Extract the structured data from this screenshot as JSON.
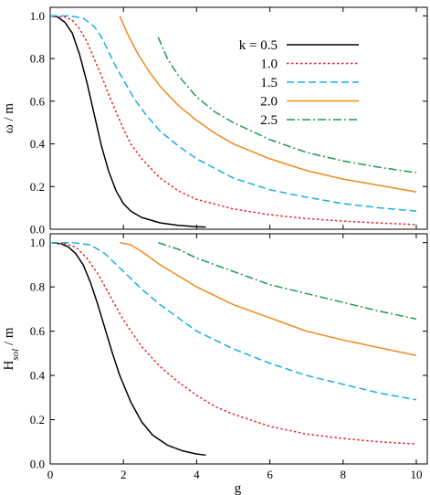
{
  "chart_data": [
    {
      "type": "line",
      "ylabel": "ω / m",
      "xlabel": "",
      "xlim": [
        0,
        10.3
      ],
      "ylim": [
        0,
        1.04
      ],
      "xticks": [
        0,
        2,
        4,
        6,
        8,
        10
      ],
      "yticks": [
        0.0,
        0.2,
        0.4,
        0.6,
        0.8,
        1.0
      ],
      "ytick_labels": [
        "0.0",
        "0.2",
        "0.4",
        "0.6",
        "0.8",
        "1.0"
      ],
      "show_xtick_labels": false,
      "legend": {
        "placement": "top-right",
        "entries": [
          {
            "text": "k = 0.5",
            "series": 0
          },
          {
            "text": "1.0",
            "series": 1
          },
          {
            "text": "1.5",
            "series": 2
          },
          {
            "text": "2.0",
            "series": 3
          },
          {
            "text": "2.5",
            "series": 4
          }
        ]
      },
      "series": [
        {
          "name": "k = 0.5",
          "color": "#000000",
          "dash": "solid",
          "x": [
            0,
            0.2,
            0.4,
            0.6,
            0.8,
            1.0,
            1.2,
            1.4,
            1.6,
            1.8,
            2.0,
            2.2,
            2.5,
            3.0,
            3.5,
            4.0,
            4.25
          ],
          "y": [
            1.0,
            0.995,
            0.97,
            0.92,
            0.82,
            0.69,
            0.54,
            0.39,
            0.27,
            0.18,
            0.12,
            0.085,
            0.055,
            0.03,
            0.018,
            0.012,
            0.01
          ]
        },
        {
          "name": "1.0",
          "color": "#e8262b",
          "dash": "dotted",
          "x": [
            0,
            0.4,
            0.6,
            0.8,
            1.0,
            1.2,
            1.4,
            1.6,
            1.8,
            2.0,
            2.2,
            2.5,
            3.0,
            3.5,
            4.0,
            5.0,
            6.0,
            7.0,
            8.0,
            9.0,
            10.0
          ],
          "y": [
            1.0,
            0.995,
            0.98,
            0.94,
            0.88,
            0.8,
            0.72,
            0.63,
            0.55,
            0.47,
            0.4,
            0.33,
            0.24,
            0.18,
            0.14,
            0.095,
            0.068,
            0.05,
            0.038,
            0.029,
            0.022
          ]
        },
        {
          "name": "1.5",
          "color": "#1aaee5",
          "dash": "dashed",
          "x": [
            0,
            0.5,
            0.9,
            1.2,
            1.4,
            1.6,
            1.8,
            2.0,
            2.3,
            2.6,
            3.0,
            3.5,
            4.0,
            5.0,
            6.0,
            7.0,
            8.0,
            9.0,
            10.0
          ],
          "y": [
            1.0,
            1.0,
            0.99,
            0.95,
            0.9,
            0.83,
            0.76,
            0.7,
            0.61,
            0.54,
            0.46,
            0.39,
            0.33,
            0.24,
            0.185,
            0.15,
            0.12,
            0.1,
            0.085
          ]
        },
        {
          "name": "2.0",
          "color": "#f08a1c",
          "dash": "solid",
          "x": [
            1.9,
            2.1,
            2.4,
            2.7,
            3.0,
            3.5,
            4.0,
            4.5,
            5.0,
            6.0,
            7.0,
            8.0,
            9.0,
            10.0
          ],
          "y": [
            1.0,
            0.92,
            0.82,
            0.74,
            0.67,
            0.58,
            0.51,
            0.45,
            0.4,
            0.33,
            0.275,
            0.235,
            0.205,
            0.175
          ]
        },
        {
          "name": "2.5",
          "color": "#1e9a4c",
          "dash": "dashdot",
          "x": [
            2.95,
            3.2,
            3.5,
            4.0,
            4.5,
            5.0,
            6.0,
            7.0,
            8.0,
            9.0,
            10.0
          ],
          "y": [
            0.9,
            0.8,
            0.72,
            0.62,
            0.55,
            0.5,
            0.42,
            0.36,
            0.32,
            0.29,
            0.265
          ]
        }
      ]
    },
    {
      "type": "line",
      "ylabel": "H",
      "ylabel_sub": "sol",
      "ylabel_suffix": " / m",
      "xlabel": "g",
      "xlim": [
        0,
        10.3
      ],
      "ylim": [
        0,
        1.04
      ],
      "xticks": [
        0,
        2,
        4,
        6,
        8,
        10
      ],
      "xtick_labels": [
        "0",
        "2",
        "4",
        "6",
        "8",
        "10"
      ],
      "yticks": [
        0.0,
        0.2,
        0.4,
        0.6,
        0.8,
        1.0
      ],
      "ytick_labels": [
        "0.0",
        "0.2",
        "0.4",
        "0.6",
        "0.8",
        "1.0"
      ],
      "show_xtick_labels": true,
      "series": [
        {
          "name": "k = 0.5",
          "color": "#000000",
          "dash": "solid",
          "x": [
            0,
            0.3,
            0.5,
            0.7,
            0.9,
            1.1,
            1.3,
            1.5,
            1.7,
            1.9,
            2.2,
            2.5,
            2.8,
            3.2,
            3.6,
            4.0,
            4.25
          ],
          "y": [
            1.0,
            0.995,
            0.98,
            0.95,
            0.9,
            0.82,
            0.72,
            0.61,
            0.5,
            0.4,
            0.28,
            0.19,
            0.13,
            0.085,
            0.06,
            0.045,
            0.04
          ]
        },
        {
          "name": "1.0",
          "color": "#e8262b",
          "dash": "dotted",
          "x": [
            0,
            0.4,
            0.7,
            1.0,
            1.3,
            1.6,
            2.0,
            2.5,
            3.0,
            3.5,
            4.0,
            4.5,
            5.0,
            6.0,
            7.0,
            8.0,
            9.0,
            10.0
          ],
          "y": [
            1.0,
            0.995,
            0.98,
            0.93,
            0.86,
            0.77,
            0.65,
            0.53,
            0.44,
            0.37,
            0.31,
            0.26,
            0.225,
            0.17,
            0.135,
            0.115,
            0.1,
            0.09
          ]
        },
        {
          "name": "1.5",
          "color": "#1aaee5",
          "dash": "dashed",
          "x": [
            0,
            0.6,
            1.1,
            1.5,
            2.0,
            2.5,
            3.0,
            3.5,
            4.0,
            5.0,
            6.0,
            7.0,
            8.0,
            9.0,
            10.0
          ],
          "y": [
            1.0,
            1.0,
            0.99,
            0.95,
            0.87,
            0.79,
            0.72,
            0.66,
            0.6,
            0.52,
            0.455,
            0.4,
            0.36,
            0.32,
            0.29
          ]
        },
        {
          "name": "2.0",
          "color": "#f08a1c",
          "dash": "solid",
          "x": [
            1.9,
            2.2,
            2.5,
            3.0,
            3.5,
            4.0,
            4.5,
            5.0,
            6.0,
            7.0,
            8.0,
            9.0,
            10.0
          ],
          "y": [
            1.0,
            0.99,
            0.96,
            0.9,
            0.85,
            0.8,
            0.76,
            0.72,
            0.66,
            0.6,
            0.56,
            0.525,
            0.49
          ]
        },
        {
          "name": "2.5",
          "color": "#1e9a4c",
          "dash": "dashdot",
          "x": [
            2.95,
            3.5,
            4.0,
            4.5,
            5.0,
            6.0,
            7.0,
            8.0,
            9.0,
            10.0
          ],
          "y": [
            1.0,
            0.97,
            0.93,
            0.9,
            0.87,
            0.81,
            0.77,
            0.73,
            0.69,
            0.655
          ]
        }
      ]
    }
  ]
}
